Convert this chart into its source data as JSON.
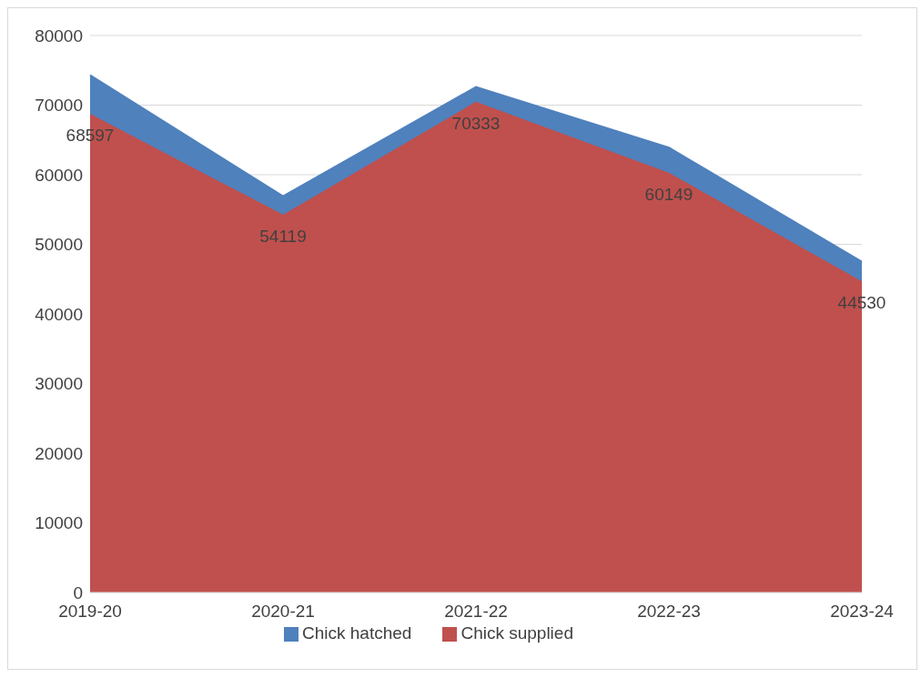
{
  "chart_data": {
    "type": "area",
    "categories": [
      "2019-20",
      "2020-21",
      "2021-22",
      "2022-23",
      "2023-24"
    ],
    "series": [
      {
        "name": "Chick hatched",
        "color": "#4f81bd",
        "values": [
          74300,
          56900,
          72600,
          63900,
          47500
        ]
      },
      {
        "name": "Chick supplied",
        "color": "#c0504d",
        "values": [
          68597,
          54119,
          70333,
          60149,
          44530
        ],
        "value_labels": [
          "68597",
          "54119",
          "70333",
          "60149",
          "44530"
        ]
      }
    ],
    "ylim": [
      0,
      80000
    ],
    "yticks": [
      0,
      10000,
      20000,
      30000,
      40000,
      50000,
      60000,
      70000,
      80000
    ],
    "grid": "y",
    "legend": "bottom"
  }
}
